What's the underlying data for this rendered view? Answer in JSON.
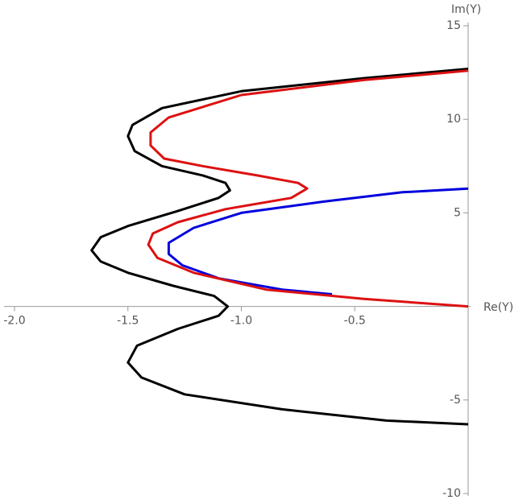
{
  "chart_data": {
    "type": "line",
    "x_label": "Re(Y)",
    "y_label": "Im(Y)",
    "xlim": [
      -2.0,
      0
    ],
    "ylim": [
      -10,
      15
    ],
    "xticks": [
      {
        "value": -2.0,
        "label": "-2.0"
      },
      -1.5,
      {
        "value": -1.0,
        "label": "-1.0"
      },
      -0.5
    ],
    "yticks": [
      -10,
      -5,
      5,
      10,
      15
    ],
    "series": [
      {
        "color": "#000000",
        "x": [
          0,
          -0.46,
          -1.0,
          -1.35,
          -1.48,
          -1.5,
          -1.47,
          -1.35,
          -1.17,
          -1.07,
          -1.05,
          -1.1,
          -1.28,
          -1.5,
          -1.62,
          -1.66,
          -1.62,
          -1.5,
          -1.3,
          -1.12,
          -1.06,
          -1.1,
          -1.28,
          -1.46,
          -1.5,
          -1.44,
          -1.25,
          -0.82,
          -0.36,
          0
        ],
        "values": [
          12.7,
          12.2,
          11.5,
          10.6,
          9.7,
          9.1,
          8.3,
          7.5,
          7.0,
          6.6,
          6.2,
          5.8,
          5.1,
          4.3,
          3.7,
          3.0,
          2.4,
          1.8,
          1.1,
          0.56,
          0,
          -0.5,
          -1.2,
          -2.1,
          -3.0,
          -3.8,
          -4.7,
          -5.5,
          -6.1,
          -6.3
        ]
      },
      {
        "color": "#0000dd",
        "x": [
          0,
          -0.29,
          -0.64,
          -1.0,
          -1.21,
          -1.32,
          -1.32,
          -1.26,
          -1.1,
          -0.82,
          -0.6
        ],
        "values": [
          6.3,
          6.1,
          5.6,
          5.0,
          4.2,
          3.4,
          2.8,
          2.2,
          1.5,
          0.9,
          0.65
        ]
      },
      {
        "color": "#dd1111",
        "x": [
          0,
          -0.46,
          -1.0,
          -1.32,
          -1.4,
          -1.4,
          -1.34,
          -1.17,
          -0.93,
          -0.75,
          -0.71,
          -0.78,
          -1.07,
          -1.28,
          -1.39,
          -1.41,
          -1.37,
          -1.21,
          -0.89,
          -0.46,
          0
        ],
        "values": [
          12.6,
          12.1,
          11.3,
          10.1,
          9.3,
          8.6,
          7.9,
          7.5,
          7.0,
          6.6,
          6.3,
          5.8,
          5.2,
          4.5,
          3.9,
          3.3,
          2.6,
          1.8,
          0.9,
          0.4,
          0
        ]
      }
    ]
  }
}
